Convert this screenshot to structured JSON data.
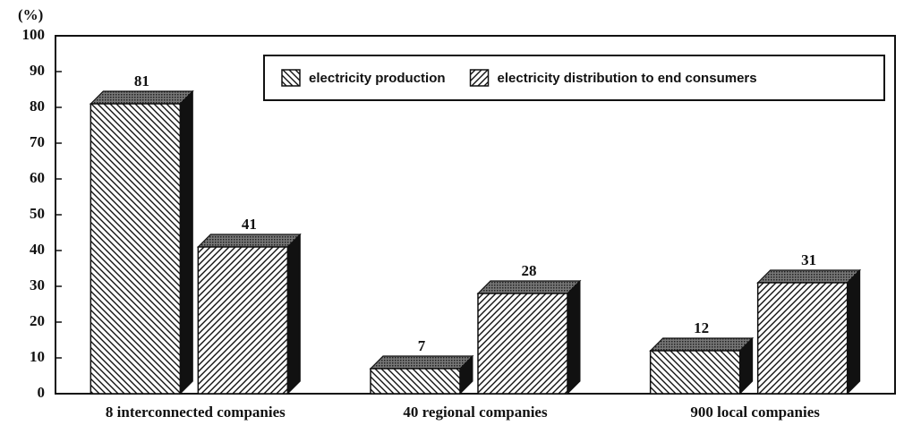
{
  "chart_data": {
    "type": "bar3d",
    "y_label": "(%)",
    "categories": [
      "8 interconnected companies",
      "40 regional companies",
      "900 local companies"
    ],
    "series": [
      {
        "name": "electricity production",
        "color": "#111111",
        "hatch": "backslash",
        "values": [
          81,
          7,
          12
        ]
      },
      {
        "name": "electricity distribution to end consumers",
        "color": "#111111",
        "hatch": "slash",
        "values": [
          41,
          28,
          31
        ]
      }
    ],
    "ylim": [
      0,
      100
    ],
    "yticks": [
      0,
      10,
      20,
      30,
      40,
      50,
      60,
      70,
      80,
      90,
      100
    ],
    "grid": false,
    "legend": "upper right"
  }
}
